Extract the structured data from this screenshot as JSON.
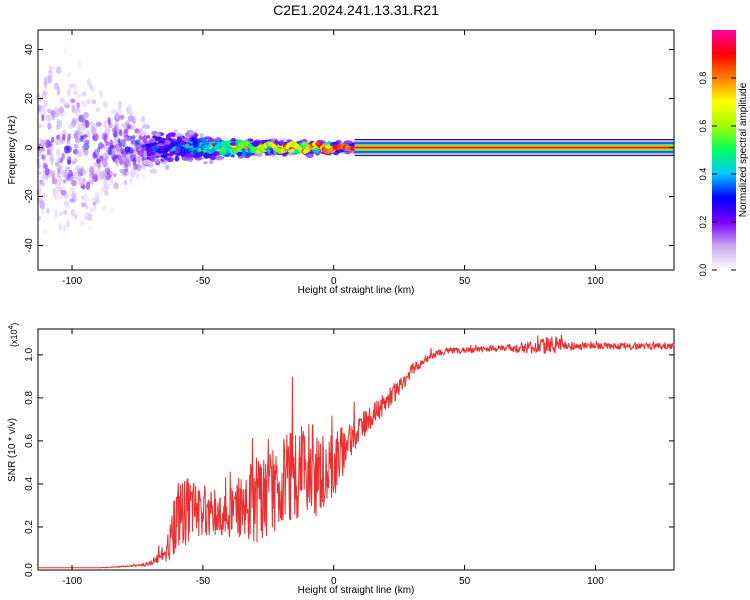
{
  "title": "C2E1.2024.241.13.31.R21",
  "chart_data": [
    {
      "type": "heatmap",
      "xlabel": "Height of straight line (km)",
      "ylabel": "Frequency (Hz)",
      "xlim": [
        -113,
        130
      ],
      "ylim": [
        -50,
        48
      ],
      "xticks": [
        -100,
        -50,
        0,
        50,
        100
      ],
      "yticks": [
        -40,
        -20,
        0,
        20,
        40
      ],
      "colorbar": {
        "label": "Normalized spectral amplitude",
        "range": [
          0,
          1
        ],
        "ticks": [
          0.0,
          0.2,
          0.4,
          0.6,
          0.8
        ],
        "tick_labels": [
          "0.0",
          "0.2",
          "0.4",
          "0.6",
          "0.8"
        ],
        "colors": [
          "#ffffff",
          "#c8a8f0",
          "#7a00ff",
          "#0000ff",
          "#00c8ff",
          "#00ff60",
          "#a0ff00",
          "#ffff00",
          "#ff8000",
          "#ff0000",
          "#ff00a0"
        ]
      },
      "description_points": [
        {
          "x": -100,
          "f_spread": 45,
          "amp": 0.15
        },
        {
          "x": -70,
          "f_spread": 10,
          "amp": 0.2
        },
        {
          "x": -50,
          "f_spread": 6,
          "amp": 0.4
        },
        {
          "x": -30,
          "f_spread": 3,
          "amp": 0.6
        },
        {
          "x": -10,
          "f_spread": 2,
          "amp": 0.8
        },
        {
          "x": 10,
          "f_spread": 1,
          "amp": 0.95
        },
        {
          "x": 130,
          "f_spread": 1,
          "amp": 0.95
        }
      ]
    },
    {
      "type": "line",
      "xlabel": "Height of straight line (km)",
      "ylabel": "SNR (10 * v/v)",
      "multiplier": "(x10^4)",
      "multiplier_base": "(x10",
      "multiplier_exp": "4",
      "multiplier_close": ")",
      "xlim": [
        -113,
        130
      ],
      "ylim": [
        0,
        1.12
      ],
      "xticks": [
        -100,
        -50,
        0,
        50,
        100
      ],
      "yticks": [
        0.0,
        0.2,
        0.4,
        0.6,
        0.8,
        1.0
      ],
      "ytick_labels": [
        "0.0",
        "0.2",
        "0.4",
        "0.6",
        "0.8",
        "1.0"
      ],
      "color": "#e83030",
      "series": [
        {
          "x": [
            -113,
            -90,
            -75,
            -70,
            -65,
            -62,
            -60,
            -55,
            -50,
            -45,
            -40,
            -35,
            -30,
            -25,
            -20,
            -15,
            -10,
            -5,
            0,
            5,
            10,
            15,
            20,
            25,
            30,
            35,
            40,
            45,
            50,
            60,
            70,
            80,
            85,
            90,
            100,
            110,
            120,
            130
          ],
          "y": [
            0.01,
            0.01,
            0.02,
            0.03,
            0.08,
            0.15,
            0.25,
            0.28,
            0.28,
            0.27,
            0.27,
            0.3,
            0.32,
            0.35,
            0.4,
            0.44,
            0.48,
            0.44,
            0.48,
            0.58,
            0.66,
            0.72,
            0.78,
            0.85,
            0.93,
            0.98,
            1.01,
            1.02,
            1.02,
            1.03,
            1.03,
            1.04,
            1.05,
            1.04,
            1.04,
            1.04,
            1.04,
            1.04
          ],
          "noise": [
            0,
            0,
            0.005,
            0.01,
            0.04,
            0.12,
            0.18,
            0.15,
            0.12,
            0.12,
            0.12,
            0.15,
            0.2,
            0.2,
            0.22,
            0.22,
            0.22,
            0.2,
            0.18,
            0.1,
            0.07,
            0.05,
            0.05,
            0.04,
            0.03,
            0.02,
            0.015,
            0.015,
            0.015,
            0.015,
            0.02,
            0.04,
            0.04,
            0.02,
            0.015,
            0.015,
            0.015,
            0.015
          ]
        }
      ]
    }
  ]
}
